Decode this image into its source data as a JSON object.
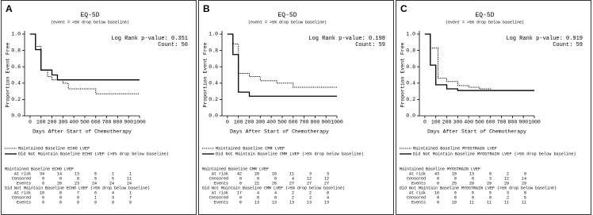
{
  "chart_data": [
    {
      "type": "line",
      "step": true,
      "panel_label": "A",
      "title": "EQ-5D",
      "subtitle": "(event = >5% drop below baseline)",
      "annotations": [
        "Log Rank p-value: 0.351",
        "Count: 50"
      ],
      "xlabel": "Days After Start of Chemotherapy",
      "ylabel": "Proportion Event Free",
      "xlim": [
        -50,
        1000
      ],
      "ylim": [
        0,
        1
      ],
      "xticks": [
        0,
        100,
        200,
        300,
        400,
        500,
        600,
        700,
        800,
        900,
        1000
      ],
      "yticks": [
        {
          "value": 0,
          "label": "0.0"
        },
        0.2,
        0.4,
        0.6,
        0.8,
        {
          "value": 1,
          "label": "1.0"
        }
      ],
      "series": [
        {
          "name": "Maintained Baseline ECHO LVEF",
          "color": "#000",
          "line_style": "dotted",
          "x": [
            0,
            50,
            100,
            160,
            200,
            300,
            350,
            600
          ],
          "values": [
            1.0,
            0.85,
            0.56,
            0.48,
            0.44,
            0.4,
            0.33,
            0.27
          ]
        },
        {
          "name": "Did Not Maintain Baseline ECHO LVEF (>5% drop below baseline)",
          "color": "#000",
          "line_style": "solid",
          "x": [
            0,
            50,
            100,
            200,
            250
          ],
          "values": [
            1.0,
            0.81,
            0.56,
            0.5,
            0.44
          ]
        }
      ],
      "risk_table": [
        {
          "title": "Maintained Baseline ECHO LVEF",
          "rows": [
            {
              "label": "At risk",
              "values": [
                34,
                14,
                13,
                5,
                1,
                1
              ]
            },
            {
              "label": "Censored",
              "values": [
                0,
                0,
                0,
                5,
                5,
                11
              ]
            },
            {
              "label": "Events",
              "values": [
                0,
                20,
                23,
                24,
                24,
                24
              ]
            }
          ]
        },
        {
          "title": "Did Not Maintain Baseline ECHO LVEF (>5% drop below baseline)",
          "rows": [
            {
              "label": "At risk",
              "values": [
                16,
                8,
                7,
                6,
                4,
                1
              ]
            },
            {
              "label": "Censored",
              "values": [
                0,
                0,
                0,
                1,
                3,
                7
              ]
            },
            {
              "label": "Events",
              "values": [
                0,
                8,
                9,
                9,
                9,
                9
              ]
            }
          ]
        }
      ]
    },
    {
      "type": "line",
      "step": true,
      "panel_label": "B",
      "title": "EQ-5D",
      "subtitle": "(event = >5% drop below baseline)",
      "annotations": [
        "Log Rank p-value: 0.198",
        "Count: 59"
      ],
      "xlabel": "Days After Start of Chemotherapy",
      "ylabel": "Proportion Event Free",
      "xlim": [
        -50,
        1000
      ],
      "ylim": [
        0,
        1
      ],
      "xticks": [
        0,
        100,
        200,
        300,
        400,
        500,
        600,
        700,
        800,
        900,
        1000
      ],
      "yticks": [
        {
          "value": 0,
          "label": "0.0"
        },
        0.2,
        0.4,
        0.6,
        0.8,
        {
          "value": 1,
          "label": "1.0"
        }
      ],
      "series": [
        {
          "name": "Maintained Baseline CMR LVEF",
          "color": "#000",
          "line_style": "dotted",
          "x": [
            0,
            50,
            100,
            200,
            300,
            450,
            600
          ],
          "values": [
            1.0,
            0.88,
            0.52,
            0.48,
            0.43,
            0.4,
            0.35
          ]
        },
        {
          "name": "Did Not Maintain Baseline CMR LVEF (>5% drop below baseline)",
          "color": "#000",
          "line_style": "solid",
          "x": [
            0,
            50,
            100,
            200
          ],
          "values": [
            1.0,
            0.75,
            0.29,
            0.24
          ]
        }
      ],
      "risk_table": [
        {
          "title": "Maintained Baseline CMR LVEF",
          "rows": [
            {
              "label": "At risk",
              "values": [
                42,
                20,
                16,
                11,
                3,
                3
              ]
            },
            {
              "label": "Censored",
              "values": [
                0,
                0,
                0,
                4,
                12,
                12
              ]
            },
            {
              "label": "Events",
              "values": [
                0,
                22,
                26,
                27,
                27,
                27
              ]
            }
          ]
        },
        {
          "title": "Did Not Maintain Baseline CMR LVEF (>5% drop below baseline)",
          "rows": [
            {
              "label": "At risk",
              "values": [
                17,
                4,
                4,
                2,
                2,
                0
              ]
            },
            {
              "label": "Censored",
              "values": [
                0,
                0,
                0,
                2,
                2,
                4
              ]
            },
            {
              "label": "Events",
              "values": [
                0,
                13,
                13,
                13,
                13,
                13
              ]
            }
          ]
        }
      ]
    },
    {
      "type": "line",
      "step": true,
      "panel_label": "C",
      "title": "EQ-5D",
      "subtitle": "(event = >5% drop below baseline)",
      "annotations": [
        "Log Rank p-value: 0.919",
        "Count: 59"
      ],
      "xlabel": "Days After Start of Chemotherapy",
      "ylabel": "Proportion Event Free",
      "xlim": [
        -50,
        1000
      ],
      "ylim": [
        0,
        1
      ],
      "xticks": [
        0,
        100,
        200,
        300,
        400,
        500,
        600,
        700,
        800,
        900,
        1000
      ],
      "yticks": [
        {
          "value": 0,
          "label": "0.0"
        },
        0.2,
        0.4,
        0.6,
        0.8,
        {
          "value": 1,
          "label": "1.0"
        }
      ],
      "series": [
        {
          "name": "Maintained Baseline MYOSTRAIN LVEF",
          "color": "#000",
          "line_style": "dotted",
          "x": [
            0,
            50,
            120,
            200,
            300,
            400,
            500,
            600
          ],
          "values": [
            1.0,
            0.83,
            0.46,
            0.42,
            0.37,
            0.35,
            0.33,
            0.31
          ]
        },
        {
          "name": "Did Not Maintain Baseline MYOSTRAIN LVEF (>5% drop below baseline)",
          "color": "#000",
          "line_style": "solid",
          "x": [
            0,
            50,
            100,
            200,
            300
          ],
          "values": [
            1.0,
            0.62,
            0.38,
            0.33,
            0.31
          ]
        }
      ],
      "risk_table": [
        {
          "title": "Maintained Baseline MYOSTRAIN LVEF",
          "rows": [
            {
              "label": "At risk",
              "values": [
                43,
                18,
                13,
                8,
                2,
                0
              ]
            },
            {
              "label": "Censored",
              "values": [
                0,
                0,
                0,
                3,
                12,
                14
              ]
            },
            {
              "label": "Events",
              "values": [
                0,
                25,
                29,
                29,
                29,
                29
              ]
            }
          ]
        },
        {
          "title": "Did Not Maintain Baseline MYOSTRAIN LVEF (>5% drop below baseline)",
          "rows": [
            {
              "label": "At risk",
              "values": [
                16,
                6,
                5,
                5,
                3,
                0
              ]
            },
            {
              "label": "Censored",
              "values": [
                0,
                0,
                0,
                0,
                2,
                5
              ]
            },
            {
              "label": "Events",
              "values": [
                0,
                10,
                11,
                11,
                11,
                11
              ]
            }
          ]
        }
      ]
    }
  ]
}
